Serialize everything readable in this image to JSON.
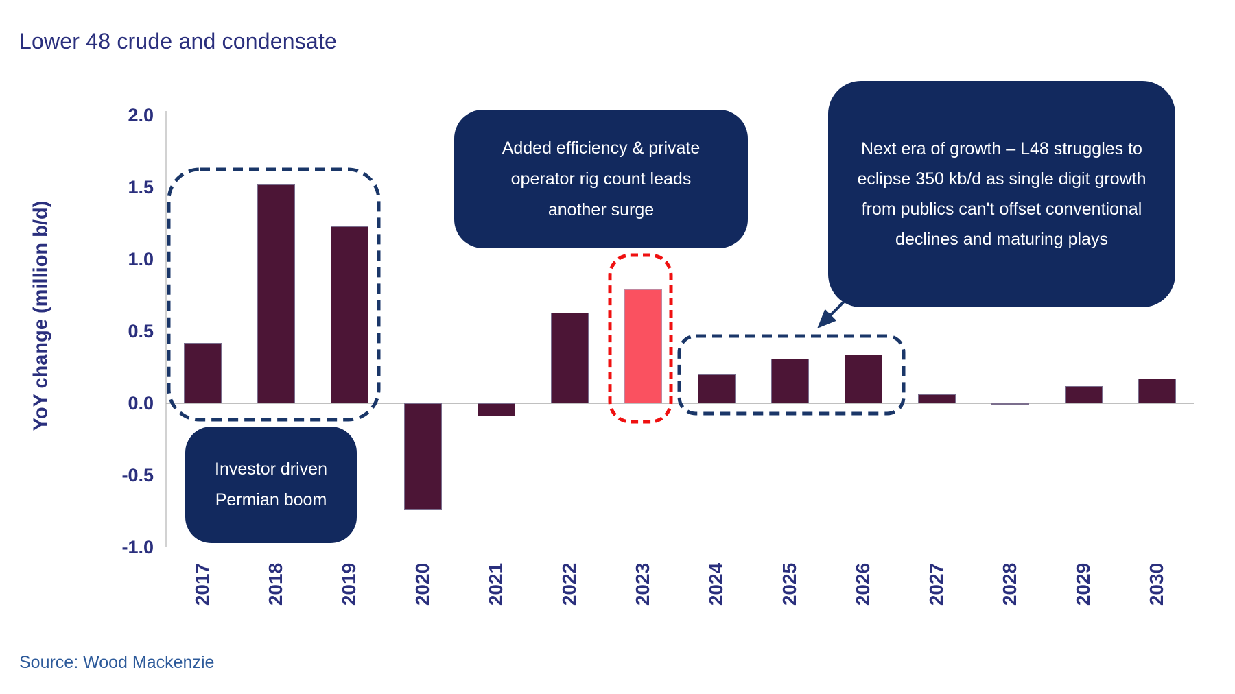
{
  "title": "Lower 48 crude and condensate",
  "source": "Source: Wood Mackenzie",
  "colors": {
    "bar": "#4C1536",
    "bar_highlight": "#FA5160",
    "callout_navy": "#12295E",
    "dashed_navy": "#1A3668",
    "dashed_red": "#EF1010",
    "axis_text": "#2A2F7D",
    "source_text": "#2D5A9A",
    "axis_line": "#C3C3C3",
    "baseline": "#ABABAB"
  },
  "chart_data": {
    "type": "bar",
    "title": "Lower 48 crude and condensate",
    "ylabel": "YoY change (million b/d)",
    "xlabel": "",
    "categories": [
      "2017",
      "2018",
      "2019",
      "2020",
      "2021",
      "2022",
      "2023",
      "2024",
      "2025",
      "2026",
      "2027",
      "2028",
      "2029",
      "2030"
    ],
    "values": [
      0.42,
      1.52,
      1.23,
      -0.74,
      -0.09,
      0.63,
      0.79,
      0.2,
      0.31,
      0.34,
      0.06,
      -0.01,
      0.12,
      0.17
    ],
    "highlighted_category": "2023",
    "ylim": [
      -1.0,
      2.0
    ],
    "yticks": [
      "2.0",
      "1.5",
      "1.0",
      "0.5",
      "0.0",
      "-0.5",
      "-1.0"
    ],
    "grid": false,
    "legend": false
  },
  "annotations": {
    "callout1": {
      "lines": [
        "Investor driven",
        "Permian boom"
      ]
    },
    "callout2": {
      "lines": [
        "Added efficiency & private",
        "operator rig count leads",
        "another surge"
      ]
    },
    "callout3": {
      "lines": [
        "Next era of growth – L48 struggles to",
        "eclipse 350 kb/d as single digit growth",
        "from publics can't offset conventional",
        "declines and maturing plays"
      ]
    }
  }
}
